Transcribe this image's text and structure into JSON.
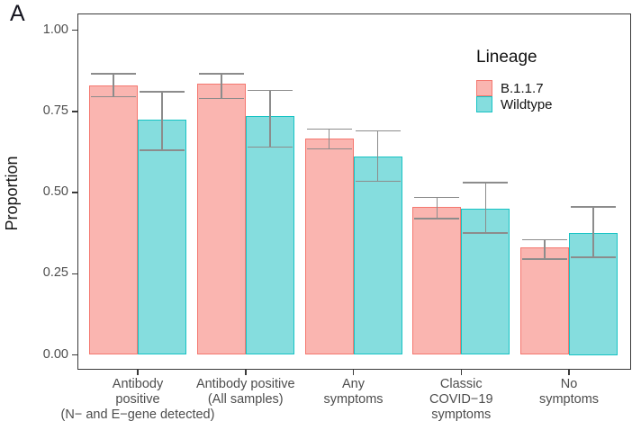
{
  "figure": {
    "panel_label": "A"
  },
  "chart_data": {
    "type": "bar",
    "title": "",
    "xlabel": "",
    "ylabel": "Proportion",
    "ylim": [
      0,
      1.0
    ],
    "grid": false,
    "yticks": [
      {
        "value": 0.0,
        "label": "0.00"
      },
      {
        "value": 0.25,
        "label": "0.25"
      },
      {
        "value": 0.5,
        "label": "0.50"
      },
      {
        "value": 0.75,
        "label": "0.75"
      },
      {
        "value": 1.0,
        "label": "1.00"
      }
    ],
    "categories": [
      [
        "Antibody",
        "positive",
        "(N− and E−gene detected)"
      ],
      [
        "Antibody positive",
        "(All samples)"
      ],
      [
        "Any",
        "symptoms"
      ],
      [
        "Classic",
        "COVID−19",
        "symptoms"
      ],
      [
        "No",
        "symptoms"
      ]
    ],
    "series": [
      {
        "name": "B.1.1.7",
        "fill": "#FAB5B0",
        "border": "#F4776F",
        "values": [
          0.83,
          0.835,
          0.665,
          0.455,
          0.33
        ],
        "ci_low": [
          0.795,
          0.79,
          0.635,
          0.42,
          0.295
        ],
        "ci_high": [
          0.865,
          0.865,
          0.695,
          0.485,
          0.355
        ]
      },
      {
        "name": "Wildtype",
        "fill": "#85DDDE",
        "border": "#17C3C4",
        "values": [
          0.725,
          0.735,
          0.61,
          0.45,
          0.375
        ],
        "ci_low": [
          0.63,
          0.64,
          0.535,
          0.375,
          0.3
        ],
        "ci_high": [
          0.81,
          0.815,
          0.69,
          0.53,
          0.455
        ]
      }
    ],
    "legend": {
      "title": "Lineage",
      "position": "top-right-inside",
      "entries": [
        "B.1.1.7",
        "Wildtype"
      ]
    },
    "colors": {
      "error_bar": "#8c8c8c",
      "axis": "#3a3a3a",
      "tick_label": "#4d4d4d"
    }
  }
}
